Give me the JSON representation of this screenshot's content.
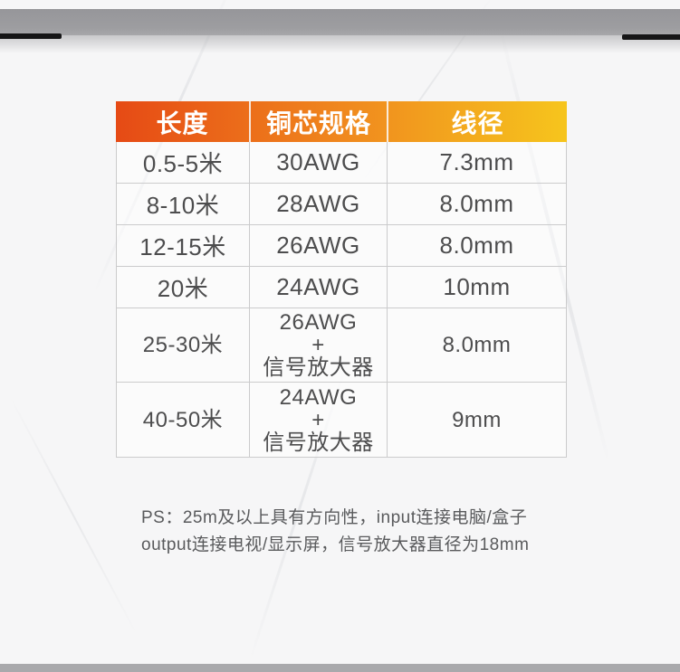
{
  "page": {
    "background_color": "#f6f6f7",
    "top_bar_color": "#9b9b9e",
    "bottom_bar_color": "#a9a9ac",
    "dark_edge_color": "#161617"
  },
  "table": {
    "header_gradient": {
      "from": "#e64a15",
      "mid": "#f08a1e",
      "to": "#f6c51d"
    },
    "header_text_color": "#ffffff",
    "body_text_color": "#4d4d4e",
    "border_color": "#cbcbcc",
    "headers": [
      {
        "label": "长度"
      },
      {
        "label": "铜芯规格"
      },
      {
        "label": "线径"
      }
    ],
    "rows": [
      {
        "length": "0.5-5米",
        "core": [
          "30AWG"
        ],
        "diameter": "7.3mm"
      },
      {
        "length": "8-10米",
        "core": [
          "28AWG"
        ],
        "diameter": "8.0mm"
      },
      {
        "length": "12-15米",
        "core": [
          "26AWG"
        ],
        "diameter": "8.0mm"
      },
      {
        "length": "20米",
        "core": [
          "24AWG"
        ],
        "diameter": "10mm"
      },
      {
        "length": "25-30米",
        "core": [
          "26AWG",
          "+",
          "信号放大器"
        ],
        "diameter": "8.0mm"
      },
      {
        "length": "40-50米",
        "core": [
          "24AWG",
          "+",
          "信号放大器"
        ],
        "diameter": "9mm"
      }
    ]
  },
  "note": {
    "line1": "PS：25m及以上具有方向性，input连接电脑/盒子",
    "line2": "output连接电视/显示屏，信号放大器直径为18mm"
  }
}
